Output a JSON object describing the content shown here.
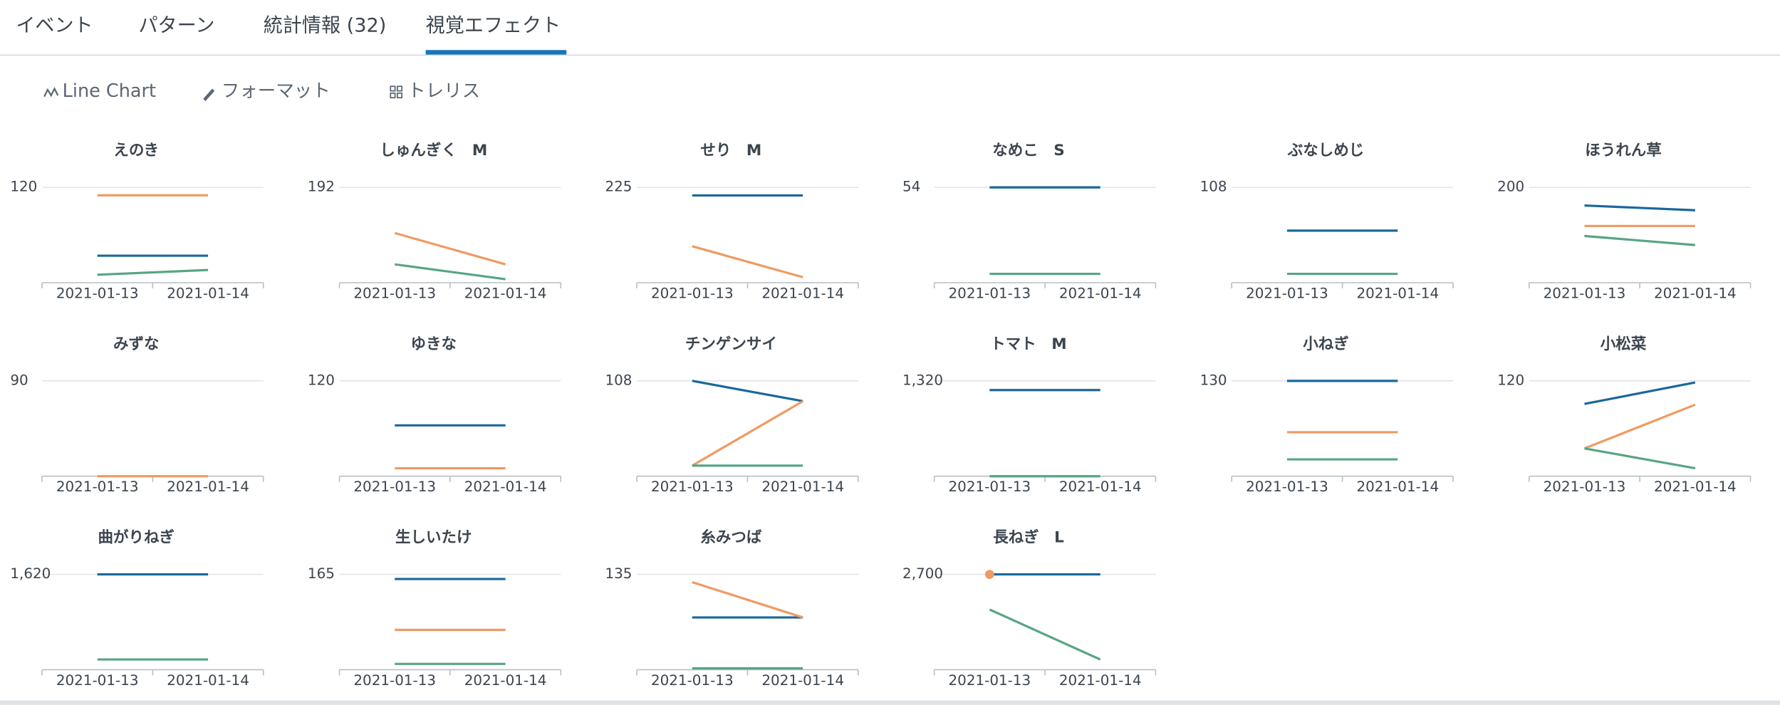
{
  "tabs": [
    "イベント",
    "パターン",
    "統計情報 (32)",
    "視覚エフェクト"
  ],
  "toolbar": [
    "Line Chart",
    "フォーマット",
    "トレリス"
  ],
  "chart_data": [
    {
      "type": "line",
      "title": "えのき",
      "categories": [
        "2021-01-13",
        "2021-01-14"
      ],
      "ylim": [
        0,
        120
      ],
      "yticks": [
        120
      ],
      "series": [
        {
          "color": "#19689a",
          "values": [
            34,
            34
          ]
        },
        {
          "color": "#ef9a62",
          "values": [
            110,
            110
          ]
        },
        {
          "color": "#57a583",
          "values": [
            10,
            16
          ]
        }
      ]
    },
    {
      "type": "line",
      "title": "しゅんぎく　M",
      "categories": [
        "2021-01-13",
        "2021-01-14"
      ],
      "ylim": [
        0,
        192
      ],
      "yticks": [
        192
      ],
      "series": [
        {
          "color": "#ef9a62",
          "values": [
            100,
            37
          ]
        },
        {
          "color": "#57a583",
          "values": [
            37,
            7
          ]
        }
      ]
    },
    {
      "type": "line",
      "title": "せり　M",
      "categories": [
        "2021-01-13",
        "2021-01-14"
      ],
      "ylim": [
        0,
        225
      ],
      "yticks": [
        225
      ],
      "series": [
        {
          "color": "#19689a",
          "values": [
            206,
            206
          ]
        },
        {
          "color": "#ef9a62",
          "values": [
            86,
            13
          ]
        }
      ]
    },
    {
      "type": "line",
      "title": "なめこ　S",
      "categories": [
        "2021-01-13",
        "2021-01-14"
      ],
      "ylim": [
        0,
        54
      ],
      "yticks": [
        54
      ],
      "series": [
        {
          "color": "#19689a",
          "values": [
            54,
            54
          ]
        },
        {
          "color": "#57a583",
          "values": [
            5,
            5
          ]
        }
      ]
    },
    {
      "type": "line",
      "title": "ぶなしめじ",
      "categories": [
        "2021-01-13",
        "2021-01-14"
      ],
      "ylim": [
        0,
        108
      ],
      "yticks": [
        108
      ],
      "series": [
        {
          "color": "#19689a",
          "values": [
            59,
            59
          ]
        },
        {
          "color": "#57a583",
          "values": [
            10,
            10
          ]
        }
      ]
    },
    {
      "type": "line",
      "title": "ほうれん草",
      "categories": [
        "2021-01-13",
        "2021-01-14"
      ],
      "ylim": [
        0,
        200
      ],
      "yticks": [
        200
      ],
      "series": [
        {
          "color": "#19689a",
          "values": [
            162,
            152
          ]
        },
        {
          "color": "#ef9a62",
          "values": [
            119,
            119
          ]
        },
        {
          "color": "#57a583",
          "values": [
            98,
            79
          ]
        }
      ]
    },
    {
      "type": "line",
      "title": "みずな",
      "categories": [
        "2021-01-13",
        "2021-01-14"
      ],
      "ylim": [
        0,
        90
      ],
      "yticks": [
        90
      ],
      "series": [
        {
          "color": "#ef9a62",
          "values": [
            0,
            0
          ]
        }
      ]
    },
    {
      "type": "line",
      "title": "ゆきな",
      "categories": [
        "2021-01-13",
        "2021-01-14"
      ],
      "ylim": [
        0,
        120
      ],
      "yticks": [
        120
      ],
      "series": [
        {
          "color": "#19689a",
          "values": [
            64,
            64
          ]
        },
        {
          "color": "#ef9a62",
          "values": [
            10,
            10
          ]
        }
      ]
    },
    {
      "type": "line",
      "title": "チンゲンサイ",
      "categories": [
        "2021-01-13",
        "2021-01-14"
      ],
      "ylim": [
        0,
        108
      ],
      "yticks": [
        108
      ],
      "series": [
        {
          "color": "#19689a",
          "values": [
            108,
            85
          ]
        },
        {
          "color": "#ef9a62",
          "values": [
            12,
            85
          ]
        },
        {
          "color": "#57a583",
          "values": [
            12,
            12
          ]
        }
      ]
    },
    {
      "type": "line",
      "title": "トマト　M",
      "categories": [
        "2021-01-13",
        "2021-01-14"
      ],
      "ylim": [
        0,
        1320
      ],
      "yticks": [
        {
          "value": 1320,
          "label": "1,320"
        }
      ],
      "series": [
        {
          "color": "#19689a",
          "values": [
            1193,
            1193
          ]
        },
        {
          "color": "#57a583",
          "values": [
            0,
            0
          ]
        }
      ]
    },
    {
      "type": "line",
      "title": "小ねぎ",
      "categories": [
        "2021-01-13",
        "2021-01-14"
      ],
      "ylim": [
        0,
        130
      ],
      "yticks": [
        130
      ],
      "series": [
        {
          "color": "#19689a",
          "values": [
            130,
            130
          ]
        },
        {
          "color": "#ef9a62",
          "values": [
            60,
            60
          ]
        },
        {
          "color": "#57a583",
          "values": [
            23,
            23
          ]
        }
      ]
    },
    {
      "type": "line",
      "title": "小松菜",
      "categories": [
        "2021-01-13",
        "2021-01-14"
      ],
      "ylim": [
        0,
        120
      ],
      "yticks": [
        120
      ],
      "series": [
        {
          "color": "#19689a",
          "values": [
            91,
            118
          ]
        },
        {
          "color": "#ef9a62",
          "values": [
            35,
            90
          ]
        },
        {
          "color": "#57a583",
          "values": [
            35,
            10
          ]
        }
      ]
    },
    {
      "type": "line",
      "title": "曲がりねぎ",
      "categories": [
        "2021-01-13",
        "2021-01-14"
      ],
      "ylim": [
        0,
        1620
      ],
      "yticks": [
        {
          "value": 1620,
          "label": "1,620"
        }
      ],
      "series": [
        {
          "color": "#19689a",
          "values": [
            1620,
            1620
          ]
        },
        {
          "color": "#57a583",
          "values": [
            174,
            174
          ]
        }
      ]
    },
    {
      "type": "line",
      "title": "生しいたけ",
      "categories": [
        "2021-01-13",
        "2021-01-14"
      ],
      "ylim": [
        0,
        165
      ],
      "yticks": [
        165
      ],
      "series": [
        {
          "color": "#19689a",
          "values": [
            157,
            157
          ]
        },
        {
          "color": "#ef9a62",
          "values": [
            69,
            69
          ]
        },
        {
          "color": "#57a583",
          "values": [
            10,
            10
          ]
        }
      ]
    },
    {
      "type": "line",
      "title": "糸みつば",
      "categories": [
        "2021-01-13",
        "2021-01-14"
      ],
      "ylim": [
        0,
        135
      ],
      "yticks": [
        135
      ],
      "series": [
        {
          "color": "#19689a",
          "values": [
            74,
            74
          ]
        },
        {
          "color": "#ef9a62",
          "values": [
            124,
            74
          ]
        },
        {
          "color": "#57a583",
          "values": [
            2,
            2
          ]
        }
      ]
    },
    {
      "type": "line",
      "title": "長ねぎ　L",
      "categories": [
        "2021-01-13",
        "2021-01-14"
      ],
      "ylim": [
        0,
        2700
      ],
      "yticks": [
        {
          "value": 2700,
          "label": "2,700"
        }
      ],
      "series": [
        {
          "color": "#19689a",
          "values": [
            2700,
            2700
          ]
        },
        {
          "color": "#ef9a62",
          "values": [
            2700,
            null
          ]
        },
        {
          "color": "#57a583",
          "values": [
            1704,
            289
          ]
        }
      ]
    }
  ]
}
